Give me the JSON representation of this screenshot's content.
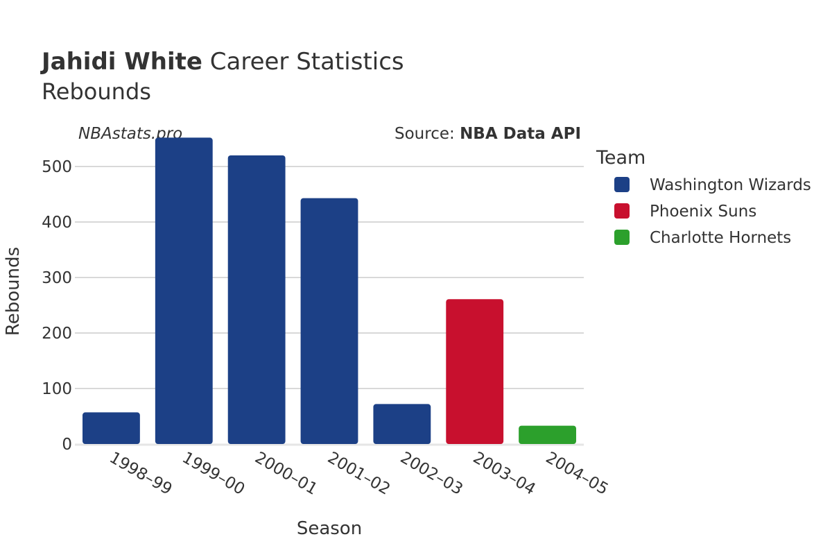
{
  "header": {
    "title_bold": "Jahidi White",
    "title_rest": " Career Statistics",
    "subtitle": "Rebounds",
    "watermark": "NBAstats.pro",
    "source_prefix": "Source: ",
    "source_bold": "NBA Data API"
  },
  "legend": {
    "title": "Team"
  },
  "chart_data": {
    "type": "bar",
    "xlabel": "Season",
    "ylabel": "Rebounds",
    "ylim": [
      0,
      550
    ],
    "yticks": [
      0,
      100,
      200,
      300,
      400,
      500
    ],
    "grid": true,
    "legend_position": "right",
    "categories": [
      "1998–99",
      "1999–00",
      "2000–01",
      "2001–02",
      "2002–03",
      "2003–04",
      "2004–05"
    ],
    "series": [
      {
        "name": "Washington Wizards",
        "color": "#1c4086",
        "values": [
          57,
          552,
          520,
          443,
          72,
          null,
          null
        ]
      },
      {
        "name": "Phoenix Suns",
        "color": "#c8102e",
        "values": [
          null,
          null,
          null,
          null,
          null,
          261,
          null
        ]
      },
      {
        "name": "Charlotte Hornets",
        "color": "#2ca02c",
        "values": [
          null,
          null,
          null,
          null,
          null,
          null,
          33
        ]
      }
    ]
  }
}
